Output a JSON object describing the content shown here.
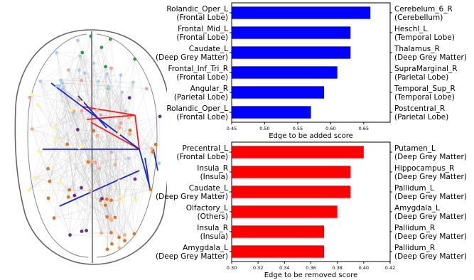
{
  "brain": {
    "colors": {
      "purple": "#6a2d8f",
      "orange": "#e8731c",
      "peach": "#f6b07a",
      "yellow": "#fff58a",
      "pink": "#f2a0a0",
      "lightblue": "#a9cde8",
      "green": "#2e9e3e",
      "edge_red": "#ff1a1a",
      "edge_blue": "#1428e6",
      "edge_grey": "#bbbbbb",
      "outline": "#666666"
    }
  },
  "chart_data": [
    {
      "type": "bar",
      "orientation": "horizontal",
      "color": "#0000ff",
      "xlabel": "Edge to be added score",
      "xlim": [
        0.45,
        0.69
      ],
      "xticks": [
        0.45,
        0.5,
        0.55,
        0.6,
        0.65
      ],
      "xtick_labels": [
        "0.45",
        "0.50",
        "0.55",
        "0.60",
        "0.65"
      ],
      "bars": [
        {
          "left": "Rolandic_Oper_L",
          "left_lobe": "(Frontal Lobe)",
          "right": "Cerebelum_6_R",
          "right_lobe": "(Cerebellum)",
          "value": 0.66
        },
        {
          "left": "Frontal_Mid_L",
          "left_lobe": "(Frontal Lobe)",
          "right": "Heschl_L",
          "right_lobe": "(Temporal Lobe)",
          "value": 0.63
        },
        {
          "left": "Caudate_L",
          "left_lobe": "(Deep Grey Matter)",
          "right": "Thalamus_R",
          "right_lobe": "(Deep Grey Matter)",
          "value": 0.63
        },
        {
          "left": "Frontal_Inf_Tri_R",
          "left_lobe": "(Frontal Lobe)",
          "right": "SupraMarginal_R",
          "right_lobe": "(Parietal Lobe)",
          "value": 0.61
        },
        {
          "left": "Angular_R",
          "left_lobe": "(Parietal Lobe)",
          "right": "Temporal_Sup_R",
          "right_lobe": "(Temporal Lobe)",
          "value": 0.59
        },
        {
          "left": "Rolandic_Oper_L",
          "left_lobe": "(Frontal Lobe)",
          "right": "Postcentral_R",
          "right_lobe": "(Parietal Lobe)",
          "value": 0.57
        }
      ]
    },
    {
      "type": "bar",
      "orientation": "horizontal",
      "color": "#ff0000",
      "xlabel": "Edge to be removed score",
      "xlim": [
        0.3,
        0.42
      ],
      "xticks": [
        0.3,
        0.32,
        0.34,
        0.36,
        0.38,
        0.4,
        0.42
      ],
      "xtick_labels": [
        "0.30",
        "0.32",
        "0.34",
        "0.36",
        "0.38",
        "0.40",
        "0.42"
      ],
      "bars": [
        {
          "left": "Precentral_L",
          "left_lobe": "(Frontal Lobe)",
          "right": "Putamen_L",
          "right_lobe": "(Deep Grey Matter)",
          "value": 0.4
        },
        {
          "left": "Insula_R",
          "left_lobe": "(Insula)",
          "right": "Hippocampus_R",
          "right_lobe": "(Deep Grey Matter)",
          "value": 0.39
        },
        {
          "left": "Caudate_L",
          "left_lobe": "(Deep Grey Matter)",
          "right": "Pallidum_L",
          "right_lobe": "(Deep Grey Matter)",
          "value": 0.39
        },
        {
          "left": "Olfactory_L",
          "left_lobe": "(Others)",
          "right": "Amygdala_L",
          "right_lobe": "(Deep Grey Matter)",
          "value": 0.38
        },
        {
          "left": "Insula_R",
          "left_lobe": "(Insula)",
          "right": "Pallidum_R",
          "right_lobe": "(Deep Grey Matter)",
          "value": 0.37
        },
        {
          "left": "Amygdala_L",
          "left_lobe": "(Deep Grey Matter)",
          "right": "Pallidum_R",
          "right_lobe": "(Deep Grey Matter)",
          "value": 0.37
        }
      ]
    }
  ]
}
